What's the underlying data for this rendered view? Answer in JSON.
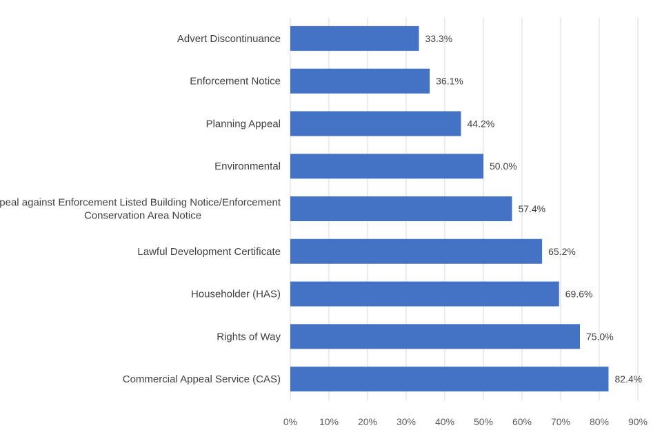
{
  "chart_data": {
    "type": "bar",
    "orientation": "horizontal",
    "title": "",
    "xlabel": "",
    "ylabel": "",
    "categories": [
      "Advert Discontinuance",
      "Enforcement Notice",
      "Planning Appeal",
      "Environmental",
      [
        "Appeal against Enforcement Listed Building Notice/Enforcement",
        "Conservation Area Notice"
      ],
      "Lawful Development Certificate",
      "Householder (HAS)",
      "Rights of Way",
      "Commercial Appeal Service (CAS)"
    ],
    "values": [
      33.3,
      36.1,
      44.2,
      50.0,
      57.4,
      65.2,
      69.6,
      75.0,
      82.4
    ],
    "value_labels": [
      "33.3%",
      "36.1%",
      "44.2%",
      "50.0%",
      "57.4%",
      "65.2%",
      "69.6%",
      "75.0%",
      "82.4%"
    ],
    "xlim": [
      0,
      90
    ],
    "xticks": [
      0,
      10,
      20,
      30,
      40,
      50,
      60,
      70,
      80,
      90
    ],
    "xtick_labels": [
      "0%",
      "10%",
      "20%",
      "30%",
      "40%",
      "50%",
      "60%",
      "70%",
      "80%",
      "90%"
    ],
    "grid": "vertical",
    "legend": "none",
    "bar_color": "#4472c4",
    "text_color": "#404040"
  }
}
